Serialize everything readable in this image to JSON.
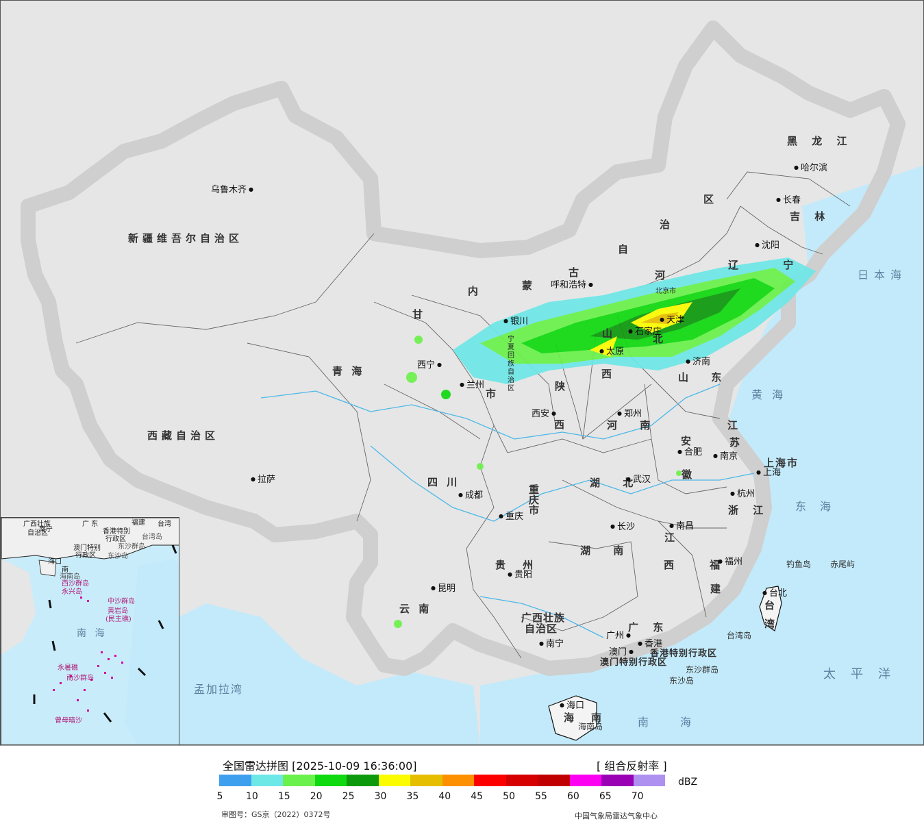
{
  "map": {
    "provinces": [
      {
        "id": "xinjiang",
        "label": "新疆维吾尔自治区"
      },
      {
        "id": "tibet",
        "label": "西藏自治区"
      },
      {
        "id": "qinghai",
        "label": "青       海"
      },
      {
        "id": "gansu",
        "label": "甘"
      },
      {
        "id": "neimenggu-1",
        "label": "内"
      },
      {
        "id": "neimenggu-2",
        "label": "蒙"
      },
      {
        "id": "neimenggu-3",
        "label": "古"
      },
      {
        "id": "neimenggu-4",
        "label": "自"
      },
      {
        "id": "neimenggu-5",
        "label": "治"
      },
      {
        "id": "neimenggu-6",
        "label": "区"
      },
      {
        "id": "heilongjiang",
        "label": "黑 龙 江"
      },
      {
        "id": "jilin",
        "label": "吉 林"
      },
      {
        "id": "liaoning",
        "label": "辽 宁"
      },
      {
        "id": "hebei-1",
        "label": "河"
      },
      {
        "id": "hebei-2",
        "label": "北"
      },
      {
        "id": "shanxi-1",
        "label": "山"
      },
      {
        "id": "shanxi-2",
        "label": "西"
      },
      {
        "id": "shaanxi-1",
        "label": "陕"
      },
      {
        "id": "shaanxi-2",
        "label": "西"
      },
      {
        "id": "shandong",
        "label": "山 东"
      },
      {
        "id": "henan",
        "label": "河 南"
      },
      {
        "id": "jiangsu-1",
        "label": "江"
      },
      {
        "id": "jiangsu-2",
        "label": "苏"
      },
      {
        "id": "anhui-1",
        "label": "安"
      },
      {
        "id": "anhui-2",
        "label": "徽"
      },
      {
        "id": "shanghai",
        "label": "上海市"
      },
      {
        "id": "zhejiang",
        "label": "浙 江"
      },
      {
        "id": "hubei",
        "label": "湖 北"
      },
      {
        "id": "sichuan",
        "label": "四   川"
      },
      {
        "id": "chongqing",
        "label": "重庆市"
      },
      {
        "id": "hunan",
        "label": "湖 南"
      },
      {
        "id": "jiangxi-1",
        "label": "江"
      },
      {
        "id": "jiangxi-2",
        "label": "西"
      },
      {
        "id": "fujian-1",
        "label": "福"
      },
      {
        "id": "fujian-2",
        "label": "建"
      },
      {
        "id": "guizhou",
        "label": "贵 州"
      },
      {
        "id": "yunnan",
        "label": "云   南"
      },
      {
        "id": "guangxi-1",
        "label": "广西壮族"
      },
      {
        "id": "guangxi-2",
        "label": "自治区"
      },
      {
        "id": "guangdong",
        "label": "广 东"
      },
      {
        "id": "hainan-1",
        "label": "海"
      },
      {
        "id": "hainan-2",
        "label": "南"
      },
      {
        "id": "taiwan-1",
        "label": "台"
      },
      {
        "id": "taiwan-2",
        "label": "湾"
      },
      {
        "id": "ningxia-1",
        "label": "宁"
      },
      {
        "id": "ningxia-2",
        "label": "夏"
      },
      {
        "id": "ningxia-3",
        "label": "回"
      },
      {
        "id": "ningxia-4",
        "label": "族"
      },
      {
        "id": "ningxia-5",
        "label": "自"
      },
      {
        "id": "ningxia-6",
        "label": "治"
      },
      {
        "id": "ningxia-7",
        "label": "区"
      },
      {
        "id": "gansu-city-suffix",
        "label": "市"
      },
      {
        "id": "hk",
        "label": "香港特别行政区"
      },
      {
        "id": "macau",
        "label": "澳门特别行政区"
      }
    ],
    "cities": [
      {
        "id": "urumqi",
        "label": "乌鲁木齐"
      },
      {
        "id": "lhasa",
        "label": "拉萨"
      },
      {
        "id": "xining",
        "label": "西宁"
      },
      {
        "id": "lanzhou",
        "label": "兰州"
      },
      {
        "id": "yinchuan",
        "label": "银川"
      },
      {
        "id": "hohhot",
        "label": "呼和浩特"
      },
      {
        "id": "harbin",
        "label": "哈尔滨"
      },
      {
        "id": "changchun",
        "label": "长春"
      },
      {
        "id": "shenyang",
        "label": "沈阳"
      },
      {
        "id": "beijing",
        "label": "北京市"
      },
      {
        "id": "tianjin",
        "label": "天津"
      },
      {
        "id": "shijiazhuang",
        "label": "石家庄"
      },
      {
        "id": "taiyuan",
        "label": "太原"
      },
      {
        "id": "jinan",
        "label": "济南"
      },
      {
        "id": "xian",
        "label": "西安"
      },
      {
        "id": "zhengzhou",
        "label": "郑州"
      },
      {
        "id": "hefei",
        "label": "合肥"
      },
      {
        "id": "nanjing",
        "label": "南京"
      },
      {
        "id": "shanghai-c",
        "label": "上海"
      },
      {
        "id": "hangzhou",
        "label": "杭州"
      },
      {
        "id": "wuhan",
        "label": "武汉"
      },
      {
        "id": "chengdu",
        "label": "成都"
      },
      {
        "id": "chongqing-c",
        "label": "重庆"
      },
      {
        "id": "changsha",
        "label": "长沙"
      },
      {
        "id": "nanchang",
        "label": "南昌"
      },
      {
        "id": "fuzhou",
        "label": "福州"
      },
      {
        "id": "guiyang",
        "label": "贵阳"
      },
      {
        "id": "kunming",
        "label": "昆明"
      },
      {
        "id": "nanning",
        "label": "南宁"
      },
      {
        "id": "guangzhou",
        "label": "广州"
      },
      {
        "id": "hongkong",
        "label": "香港"
      },
      {
        "id": "macao",
        "label": "澳门"
      },
      {
        "id": "haikou",
        "label": "海口"
      },
      {
        "id": "taibei",
        "label": "台北"
      }
    ],
    "seas": [
      {
        "id": "japan-sea",
        "label": "日本海"
      },
      {
        "id": "yellow-sea",
        "label": "黄海"
      },
      {
        "id": "east-sea",
        "label": "东海"
      },
      {
        "id": "pacific",
        "label": "太平洋"
      },
      {
        "id": "south-sea",
        "label": "南海"
      },
      {
        "id": "bengal",
        "label": "孟加拉湾"
      }
    ],
    "islands": [
      {
        "id": "diaoyu",
        "label": "钓鱼岛"
      },
      {
        "id": "chiwei",
        "label": "赤尾屿"
      },
      {
        "id": "taiwan-isl",
        "label": "台湾岛"
      },
      {
        "id": "dongsha-qd",
        "label": "东沙群岛"
      },
      {
        "id": "dongsha-d",
        "label": "东沙岛"
      },
      {
        "id": "hainan-isl",
        "label": "海南岛"
      }
    ],
    "inset": {
      "labels": [
        {
          "id": "i-gx",
          "label": "广西壮族"
        },
        {
          "id": "i-gx2",
          "label": "自治区"
        },
        {
          "id": "i-nn",
          "label": "南宁"
        },
        {
          "id": "i-gd",
          "label": "广 东"
        },
        {
          "id": "i-fj",
          "label": "福建"
        },
        {
          "id": "i-tw",
          "label": "台湾"
        },
        {
          "id": "i-hk",
          "label": "香港特别"
        },
        {
          "id": "i-hk2",
          "label": "行政区"
        },
        {
          "id": "i-mo",
          "label": "澳门特别"
        },
        {
          "id": "i-mo2",
          "label": "行政区"
        },
        {
          "id": "i-tai",
          "label": "台湾岛"
        },
        {
          "id": "i-dsq",
          "label": "东沙群岛"
        },
        {
          "id": "i-dsd",
          "label": "东沙岛"
        },
        {
          "id": "i-hn",
          "label": "海口"
        },
        {
          "id": "i-hn2",
          "label": "南"
        },
        {
          "id": "i-hnisl",
          "label": "海南岛"
        },
        {
          "id": "i-xs",
          "label": "西沙群岛"
        },
        {
          "id": "i-yx",
          "label": "永兴岛"
        },
        {
          "id": "i-zs",
          "label": "中沙群岛"
        },
        {
          "id": "i-hy",
          "label": "黄岩岛"
        },
        {
          "id": "i-hy2",
          "label": "(民主礁)"
        },
        {
          "id": "i-sea",
          "label": "南  海"
        },
        {
          "id": "i-ns",
          "label": "南沙群岛"
        },
        {
          "id": "i-ysj",
          "label": "永暑礁"
        },
        {
          "id": "i-zm",
          "label": "曾母暗沙"
        }
      ]
    }
  },
  "legend": {
    "title": "全国雷达拼图 [2025-10-09 16:36:00]",
    "product": "[ 组合反射率 ]",
    "unit": "dBZ",
    "colors": [
      "#3f9fef",
      "#6ee7e7",
      "#6bf14b",
      "#0fd90f",
      "#0c9a0c",
      "#fcfc00",
      "#e6be00",
      "#fd9000",
      "#fc0000",
      "#d60000",
      "#c00000",
      "#fc00f2",
      "#9a00b4",
      "#ae90f0"
    ],
    "ticks": [
      "5",
      "10",
      "15",
      "20",
      "25",
      "30",
      "35",
      "40",
      "45",
      "50",
      "55",
      "60",
      "65",
      "70"
    ],
    "approval": "审图号：GS京（2022）0372号",
    "credit": "中国气象局雷达气象中心"
  }
}
